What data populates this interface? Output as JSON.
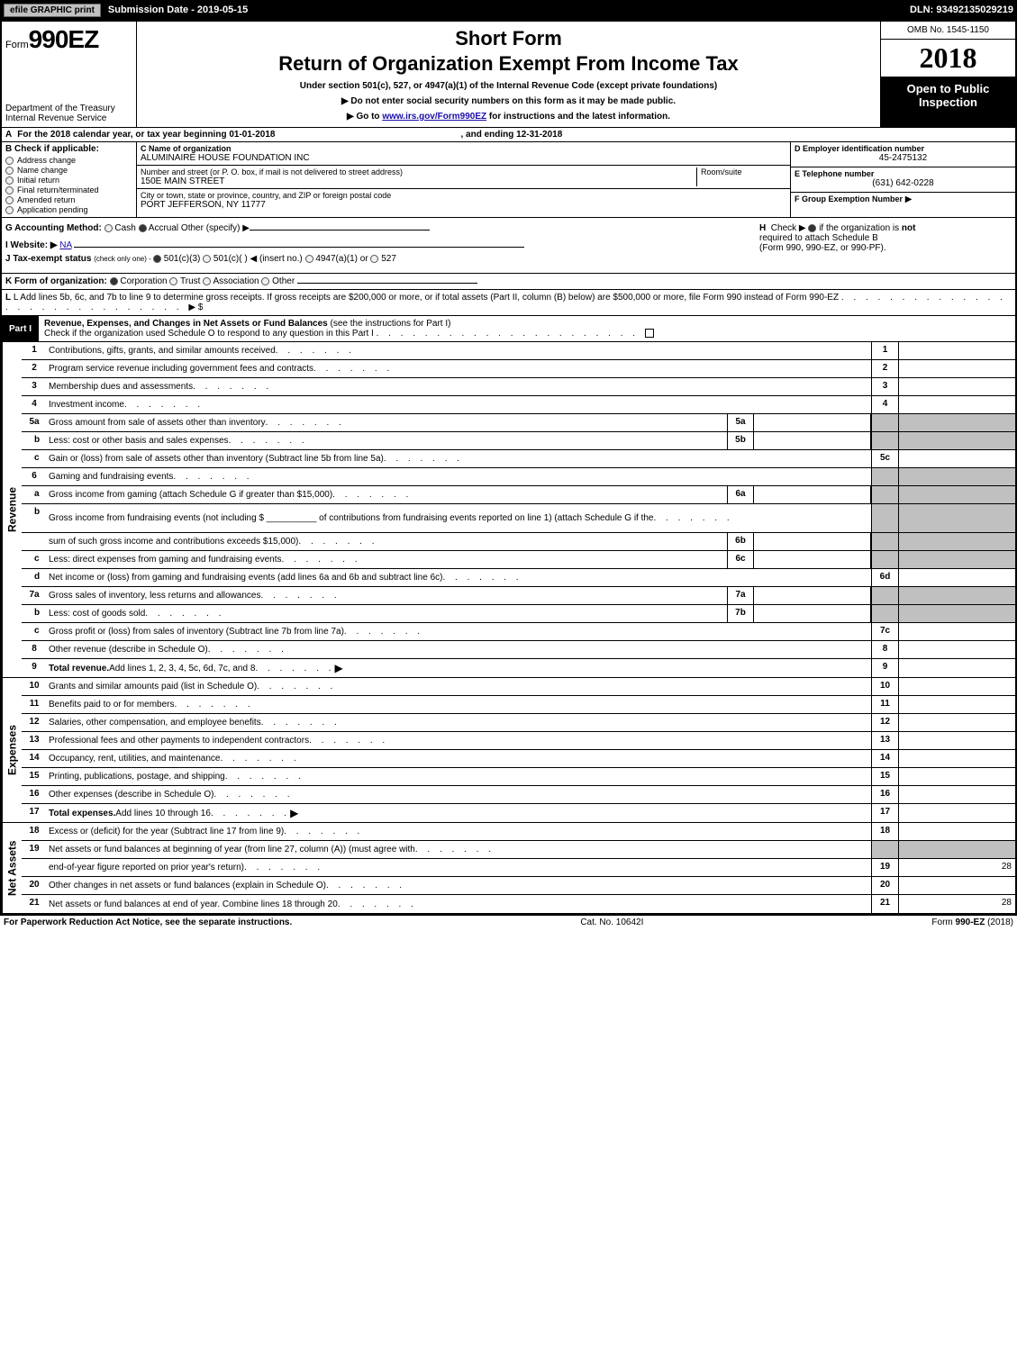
{
  "topbar": {
    "efile": "efile GRAPHIC print",
    "submission": "Submission Date - 2019-05-15",
    "dln": "DLN: 93492135029219"
  },
  "header": {
    "form_prefix": "Form",
    "form_number": "990EZ",
    "short_form": "Short Form",
    "return_title": "Return of Organization Exempt From Income Tax",
    "under_section": "Under section 501(c), 527, or 4947(a)(1) of the Internal Revenue Code (except private foundations)",
    "no_ssn": "▶ Do not enter social security numbers on this form as it may be made public.",
    "goto_prefix": "▶ Go to ",
    "goto_link": "www.irs.gov/Form990EZ",
    "goto_suffix": " for instructions and the latest information.",
    "dept1": "Department of the Treasury",
    "dept2": "Internal Revenue Service",
    "omb": "OMB No. 1545-1150",
    "year": "2018",
    "open_public": "Open to Public Inspection"
  },
  "row_a": {
    "label": "A",
    "text1": "For the 2018 calendar year, or tax year beginning 01-01-2018",
    "text2": ", and ending 12-31-2018"
  },
  "col_b": {
    "label": "B",
    "head": "Check if applicable:",
    "items": [
      "Address change",
      "Name change",
      "Initial return",
      "Final return/terminated",
      "Amended return",
      "Application pending"
    ]
  },
  "col_c": {
    "c_label": "C Name of organization",
    "c_value": "ALUMINAIRE HOUSE FOUNDATION INC",
    "addr_label": "Number and street (or P. O. box, if mail is not delivered to street address)",
    "addr_value": "150E MAIN STREET",
    "room_label": "Room/suite",
    "city_label": "City or town, state or province, country, and ZIP or foreign postal code",
    "city_value": "PORT JEFFERSON, NY  11777"
  },
  "col_def": {
    "d_label": "D Employer identification number",
    "d_value": "45-2475132",
    "e_label": "E Telephone number",
    "e_value": "(631) 642-0228",
    "f_label": "F Group Exemption Number",
    "f_arrow": "▶"
  },
  "section_gh": {
    "g_label": "G Accounting Method:",
    "g_cash": "Cash",
    "g_accrual": "Accrual",
    "g_other": "Other (specify) ▶",
    "i_label": "I Website: ▶",
    "i_value": "NA",
    "j_prefix": "J Tax-exempt status",
    "j_text": "(check only one) - ",
    "j_501c3": "501(c)(3)",
    "j_501c": "501(c)(  ) ◀ (insert no.)",
    "j_4947": "4947(a)(1) or",
    "j_527": "527",
    "h_label": "H",
    "h_check": "Check ▶",
    "h_text1": "if the organization is ",
    "h_not": "not",
    "h_text2": " required to attach Schedule B",
    "h_text3": "(Form 990, 990-EZ, or 990-PF)."
  },
  "k_line": {
    "prefix": "K Form of organization:",
    "corp": "Corporation",
    "trust": "Trust",
    "assoc": "Association",
    "other": "Other"
  },
  "l_line": {
    "text": "L Add lines 5b, 6c, and 7b to line 9 to determine gross receipts. If gross receipts are $200,000 or more, or if total assets (Part II, column (B) below) are $500,000 or more, file Form 990 instead of Form 990-EZ",
    "arrow": "▶ $"
  },
  "part1": {
    "label": "Part I",
    "title_b": "Revenue, Expenses, and Changes in Net Assets or Fund Balances",
    "title_rest": " (see the instructions for Part I)",
    "check_text": "Check if the organization used Schedule O to respond to any question in this Part I"
  },
  "revenue_rows": [
    {
      "n": "1",
      "text": "Contributions, gifts, grants, and similar amounts received",
      "end": "1"
    },
    {
      "n": "2",
      "text": "Program service revenue including government fees and contracts",
      "end": "2"
    },
    {
      "n": "3",
      "text": "Membership dues and assessments",
      "end": "3"
    },
    {
      "n": "4",
      "text": "Investment income",
      "end": "4"
    },
    {
      "n": "5a",
      "text": "Gross amount from sale of assets other than inventory",
      "mid": "5a",
      "shaded_end": true
    },
    {
      "n": "b",
      "indent": true,
      "text": "Less: cost or other basis and sales expenses",
      "mid": "5b",
      "shaded_end": true
    },
    {
      "n": "c",
      "indent": true,
      "text": "Gain or (loss) from sale of assets other than inventory (Subtract line 5b from line 5a)",
      "end": "5c"
    },
    {
      "n": "6",
      "text": "Gaming and fundraising events",
      "shaded_end": true,
      "no_end_num": true
    },
    {
      "n": "a",
      "indent": true,
      "text": "Gross income from gaming (attach Schedule G if greater than $15,000)",
      "mid": "6a",
      "shaded_end": true
    },
    {
      "n": "b",
      "indent": true,
      "text": "Gross income from fundraising events (not including $ __________ of contributions from fundraising events reported on line 1) (attach Schedule G if the",
      "shaded_end": true,
      "no_end_num": true,
      "tall": true
    },
    {
      "n": "",
      "text": "sum of such gross income and contributions exceeds $15,000)",
      "mid": "6b",
      "shaded_end": true
    },
    {
      "n": "c",
      "indent": true,
      "text": "Less: direct expenses from gaming and fundraising events",
      "mid": "6c",
      "shaded_end": true
    },
    {
      "n": "d",
      "indent": true,
      "text": "Net income or (loss) from gaming and fundraising events (add lines 6a and 6b and subtract line 6c)",
      "end": "6d"
    },
    {
      "n": "7a",
      "text": "Gross sales of inventory, less returns and allowances",
      "mid": "7a",
      "shaded_end": true
    },
    {
      "n": "b",
      "indent": true,
      "text": "Less: cost of goods sold",
      "mid": "7b",
      "shaded_end": true
    },
    {
      "n": "c",
      "indent": true,
      "text": "Gross profit or (loss) from sales of inventory (Subtract line 7b from line 7a)",
      "end": "7c"
    },
    {
      "n": "8",
      "text": "Other revenue (describe in Schedule O)",
      "end": "8"
    },
    {
      "n": "9",
      "text_b": "Total revenue.",
      "text": " Add lines 1, 2, 3, 4, 5c, 6d, 7c, and 8",
      "end": "9",
      "arrow": true
    }
  ],
  "expense_rows": [
    {
      "n": "10",
      "text": "Grants and similar amounts paid (list in Schedule O)",
      "end": "10"
    },
    {
      "n": "11",
      "text": "Benefits paid to or for members",
      "end": "11"
    },
    {
      "n": "12",
      "text": "Salaries, other compensation, and employee benefits",
      "end": "12"
    },
    {
      "n": "13",
      "text": "Professional fees and other payments to independent contractors",
      "end": "13"
    },
    {
      "n": "14",
      "text": "Occupancy, rent, utilities, and maintenance",
      "end": "14"
    },
    {
      "n": "15",
      "text": "Printing, publications, postage, and shipping",
      "end": "15"
    },
    {
      "n": "16",
      "text": "Other expenses (describe in Schedule O)",
      "end": "16"
    },
    {
      "n": "17",
      "text_b": "Total expenses.",
      "text": " Add lines 10 through 16",
      "end": "17",
      "arrow": true
    }
  ],
  "netassets_rows": [
    {
      "n": "18",
      "text": "Excess or (deficit) for the year (Subtract line 17 from line 9)",
      "end": "18"
    },
    {
      "n": "19",
      "text": "Net assets or fund balances at beginning of year (from line 27, column (A)) (must agree with",
      "shaded_end": true,
      "no_end_num": true
    },
    {
      "n": "",
      "text": "end-of-year figure reported on prior year's return)",
      "end": "19",
      "val": "28"
    },
    {
      "n": "20",
      "text": "Other changes in net assets or fund balances (explain in Schedule O)",
      "end": "20"
    },
    {
      "n": "21",
      "text": "Net assets or fund balances at end of year. Combine lines 18 through 20",
      "end": "21",
      "val": "28"
    }
  ],
  "side_labels": {
    "revenue": "Revenue",
    "expenses": "Expenses",
    "netassets": "Net Assets"
  },
  "footer": {
    "left": "For Paperwork Reduction Act Notice, see the separate instructions.",
    "mid": "Cat. No. 10642I",
    "right": "Form 990-EZ (2018)"
  }
}
